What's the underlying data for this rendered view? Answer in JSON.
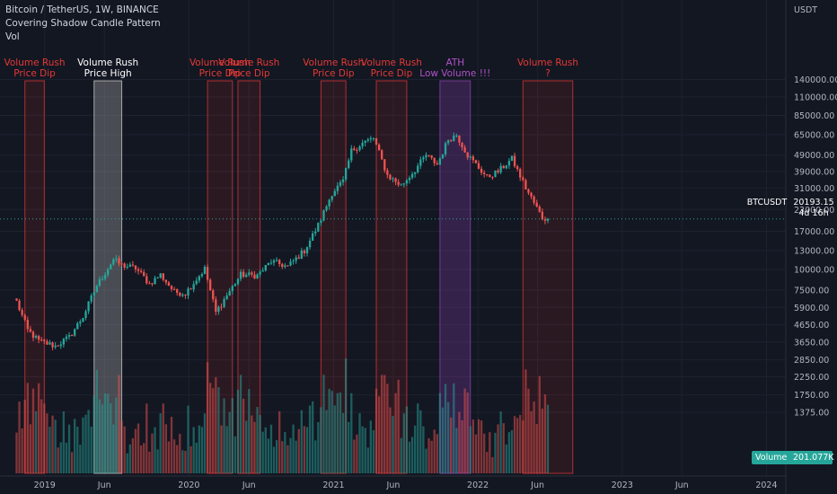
{
  "header": {
    "title": "Bitcoin / TetherUS, 1W, BINANCE",
    "indicator": "Covering Shadow Candle Pattern",
    "volume_label": "Vol"
  },
  "price_badge": {
    "symbol": "BTCUSDT",
    "value": "20193.15",
    "countdown": "4d 16h"
  },
  "volume_badge": {
    "label": "Volume",
    "value": "201.077K"
  },
  "colors": {
    "background": "#131722",
    "up": "#26a69a",
    "down": "#ef5350",
    "zone_red": "#e03535",
    "zone_white": "#cfcfcf",
    "zone_purple": "#8e44ad",
    "label_red": "#e53935",
    "label_white": "#ffffff",
    "label_purple": "#b052c8"
  },
  "chart_data": {
    "type": "candlestick",
    "title": "Bitcoin / TetherUS, 1W, BINANCE",
    "y_scale": "log",
    "y_axis_unit": "USDT",
    "y_ticks": [
      1375,
      1750,
      2250,
      2850,
      3650,
      4650,
      5900,
      7500,
      10000,
      13000,
      17000,
      23000,
      31000,
      39000,
      49000,
      65000,
      85000,
      110000,
      140000
    ],
    "y_tick_labels": [
      "1375.00",
      "1750.00",
      "2250.00",
      "2850.00",
      "3650.00",
      "4650.00",
      "5900.00",
      "7500.00",
      "10000.00",
      "13000.00",
      "17000.00",
      "23000.00",
      "31000.00",
      "39000.00",
      "49000.00",
      "65000.00",
      "85000.00",
      "110000.00",
      "140000.00"
    ],
    "x_ticks": [
      "2019",
      "Jun",
      "2020",
      "Jun",
      "2021",
      "Jun",
      "2022",
      "Jun",
      "2023",
      "Jun",
      "2024"
    ],
    "x_tick_dates": [
      "2019-01-01",
      "2019-06-01",
      "2020-01-01",
      "2020-06-01",
      "2021-01-01",
      "2021-06-01",
      "2022-01-01",
      "2022-06-01",
      "2023-01-01",
      "2023-06-01",
      "2024-01-01"
    ],
    "x_range": [
      "2018-09-10",
      "2024-02-19"
    ],
    "last_price": 20193.15,
    "close_points": [
      {
        "date": "2018-10-22",
        "close": 6400
      },
      {
        "date": "2018-11-19",
        "close": 4300
      },
      {
        "date": "2018-12-17",
        "close": 3700
      },
      {
        "date": "2019-01-28",
        "close": 3450
      },
      {
        "date": "2019-03-04",
        "close": 3900
      },
      {
        "date": "2019-04-08",
        "close": 5200
      },
      {
        "date": "2019-05-13",
        "close": 8000
      },
      {
        "date": "2019-06-24",
        "close": 11500
      },
      {
        "date": "2019-07-15",
        "close": 10600
      },
      {
        "date": "2019-08-19",
        "close": 10200
      },
      {
        "date": "2019-09-23",
        "close": 8200
      },
      {
        "date": "2019-10-21",
        "close": 9300
      },
      {
        "date": "2019-11-25",
        "close": 7300
      },
      {
        "date": "2019-12-23",
        "close": 7200
      },
      {
        "date": "2020-02-10",
        "close": 10100
      },
      {
        "date": "2020-03-09",
        "close": 5500
      },
      {
        "date": "2020-04-06",
        "close": 7000
      },
      {
        "date": "2020-05-11",
        "close": 9300
      },
      {
        "date": "2020-06-22",
        "close": 9200
      },
      {
        "date": "2020-07-27",
        "close": 11200
      },
      {
        "date": "2020-09-07",
        "close": 10400
      },
      {
        "date": "2020-10-19",
        "close": 13000
      },
      {
        "date": "2020-11-23",
        "close": 18500
      },
      {
        "date": "2020-12-28",
        "close": 29000
      },
      {
        "date": "2021-01-25",
        "close": 34000
      },
      {
        "date": "2021-02-15",
        "close": 52000
      },
      {
        "date": "2021-03-15",
        "close": 58000
      },
      {
        "date": "2021-04-12",
        "close": 62000
      },
      {
        "date": "2021-05-17",
        "close": 37000
      },
      {
        "date": "2021-06-21",
        "close": 32000
      },
      {
        "date": "2021-07-26",
        "close": 40000
      },
      {
        "date": "2021-08-23",
        "close": 49000
      },
      {
        "date": "2021-09-20",
        "close": 43000
      },
      {
        "date": "2021-10-18",
        "close": 61000
      },
      {
        "date": "2021-11-08",
        "close": 65000
      },
      {
        "date": "2021-12-06",
        "close": 49000
      },
      {
        "date": "2022-01-24",
        "close": 36000
      },
      {
        "date": "2022-02-21",
        "close": 39000
      },
      {
        "date": "2022-03-28",
        "close": 46500
      },
      {
        "date": "2022-05-02",
        "close": 31000
      },
      {
        "date": "2022-06-13",
        "close": 20500
      },
      {
        "date": "2022-06-27",
        "close": 20193
      }
    ],
    "volume_unit": "BTC",
    "last_volume": 201077,
    "zones": [
      {
        "start": "2018-11-12",
        "end": "2018-12-31",
        "style": "red",
        "label": "Volume Rush\nPrice Dip"
      },
      {
        "start": "2019-05-06",
        "end": "2019-07-15",
        "style": "white",
        "label": "Volume Rush\nPrice High"
      },
      {
        "start": "2020-02-17",
        "end": "2020-04-20",
        "style": "red",
        "label": "Volume Rush\nPrice Dip"
      },
      {
        "start": "2020-05-04",
        "end": "2020-06-29",
        "style": "red",
        "label": "Volume Rush\nPrice Dip"
      },
      {
        "start": "2020-11-30",
        "end": "2021-02-01",
        "style": "red",
        "label": "Volume Rush\nPrice Dip"
      },
      {
        "start": "2021-04-19",
        "end": "2021-07-05",
        "style": "red",
        "label": "Volume Rush\nPrice Dip"
      },
      {
        "start": "2021-09-27",
        "end": "2021-12-13",
        "style": "purple",
        "label": "ATH\nLow Volume !!!"
      },
      {
        "start": "2022-04-25",
        "end": "2022-08-29",
        "style": "red",
        "label": "Volume Rush\n?"
      }
    ]
  }
}
